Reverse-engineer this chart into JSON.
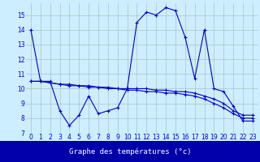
{
  "xlabel": "Graphe des températures (°c)",
  "background_color": "#cceeff",
  "grid_color": "#aacccc",
  "line_color": "#0000cc",
  "bar_color": "#0000aa",
  "ylim": [
    7,
    15.8
  ],
  "xlim": [
    -0.5,
    23.5
  ],
  "yticks": [
    7,
    8,
    9,
    10,
    11,
    12,
    13,
    14,
    15
  ],
  "xticks": [
    0,
    1,
    2,
    3,
    4,
    5,
    6,
    7,
    8,
    9,
    10,
    11,
    12,
    13,
    14,
    15,
    16,
    17,
    18,
    19,
    20,
    21,
    22,
    23
  ],
  "series1_x": [
    0,
    1,
    2,
    3,
    4,
    5,
    6,
    7,
    8,
    9,
    10,
    11,
    12,
    13,
    14,
    15,
    16,
    17,
    18,
    19,
    20,
    21,
    22,
    23
  ],
  "series1_y": [
    14.0,
    10.5,
    10.5,
    8.5,
    7.5,
    8.2,
    9.5,
    8.3,
    8.5,
    8.7,
    10.0,
    14.5,
    15.2,
    15.0,
    15.5,
    15.3,
    13.5,
    10.7,
    14.0,
    10.0,
    9.8,
    8.8,
    7.8,
    7.8
  ],
  "series2_x": [
    0,
    1,
    2,
    3,
    4,
    5,
    6,
    7,
    8,
    9,
    10,
    11,
    12,
    13,
    14,
    15,
    16,
    17,
    18,
    19,
    20,
    21,
    22,
    23
  ],
  "series2_y": [
    10.5,
    10.5,
    10.4,
    10.3,
    10.3,
    10.2,
    10.2,
    10.1,
    10.1,
    10.0,
    10.0,
    10.0,
    10.0,
    9.9,
    9.9,
    9.8,
    9.8,
    9.7,
    9.5,
    9.3,
    9.0,
    8.5,
    8.2,
    8.2
  ],
  "series3_x": [
    0,
    1,
    2,
    3,
    4,
    5,
    6,
    7,
    8,
    9,
    10,
    11,
    12,
    13,
    14,
    15,
    16,
    17,
    18,
    19,
    20,
    21,
    22,
    23
  ],
  "series3_y": [
    10.5,
    10.5,
    10.4,
    10.3,
    10.2,
    10.2,
    10.1,
    10.1,
    10.0,
    10.0,
    9.9,
    9.9,
    9.8,
    9.8,
    9.7,
    9.7,
    9.6,
    9.5,
    9.3,
    9.0,
    8.7,
    8.3,
    8.0,
    8.0
  ],
  "tick_fontsize": 5.5,
  "xlabel_fontsize": 6.5
}
